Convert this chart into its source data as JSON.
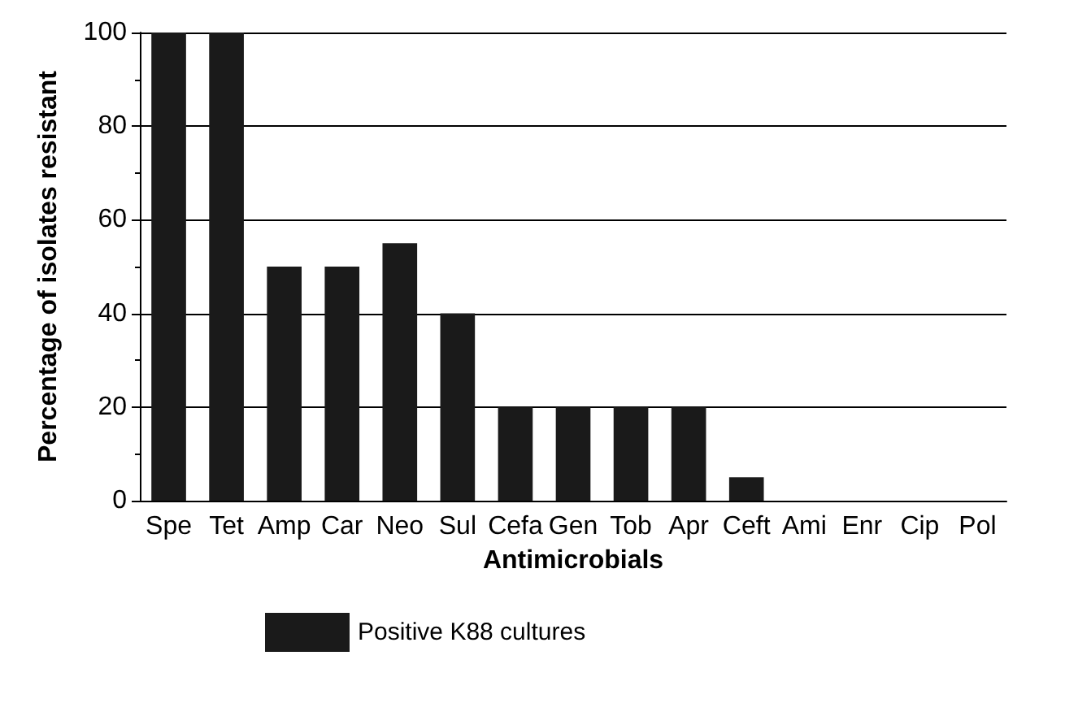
{
  "chart_data": {
    "type": "bar",
    "xlabel": "Antimicrobials",
    "ylabel": "Percentage of isolates resistant",
    "categories": [
      "Spe",
      "Tet",
      "Amp",
      "Car",
      "Neo",
      "Sul",
      "Cefa",
      "Gen",
      "Tob",
      "Apr",
      "Ceft",
      "Ami",
      "Enr",
      "Cip",
      "Pol"
    ],
    "series": [
      {
        "name": "Positive K88 cultures",
        "color": "#1a1a1a",
        "values": [
          100,
          100,
          50,
          50,
          55,
          40,
          20,
          20,
          20,
          20,
          5,
          0,
          0,
          0,
          0
        ]
      }
    ],
    "ylim": [
      0,
      100
    ],
    "yticks": [
      0,
      20,
      40,
      60,
      80,
      100
    ],
    "grid": "y",
    "legend": "bottom"
  }
}
